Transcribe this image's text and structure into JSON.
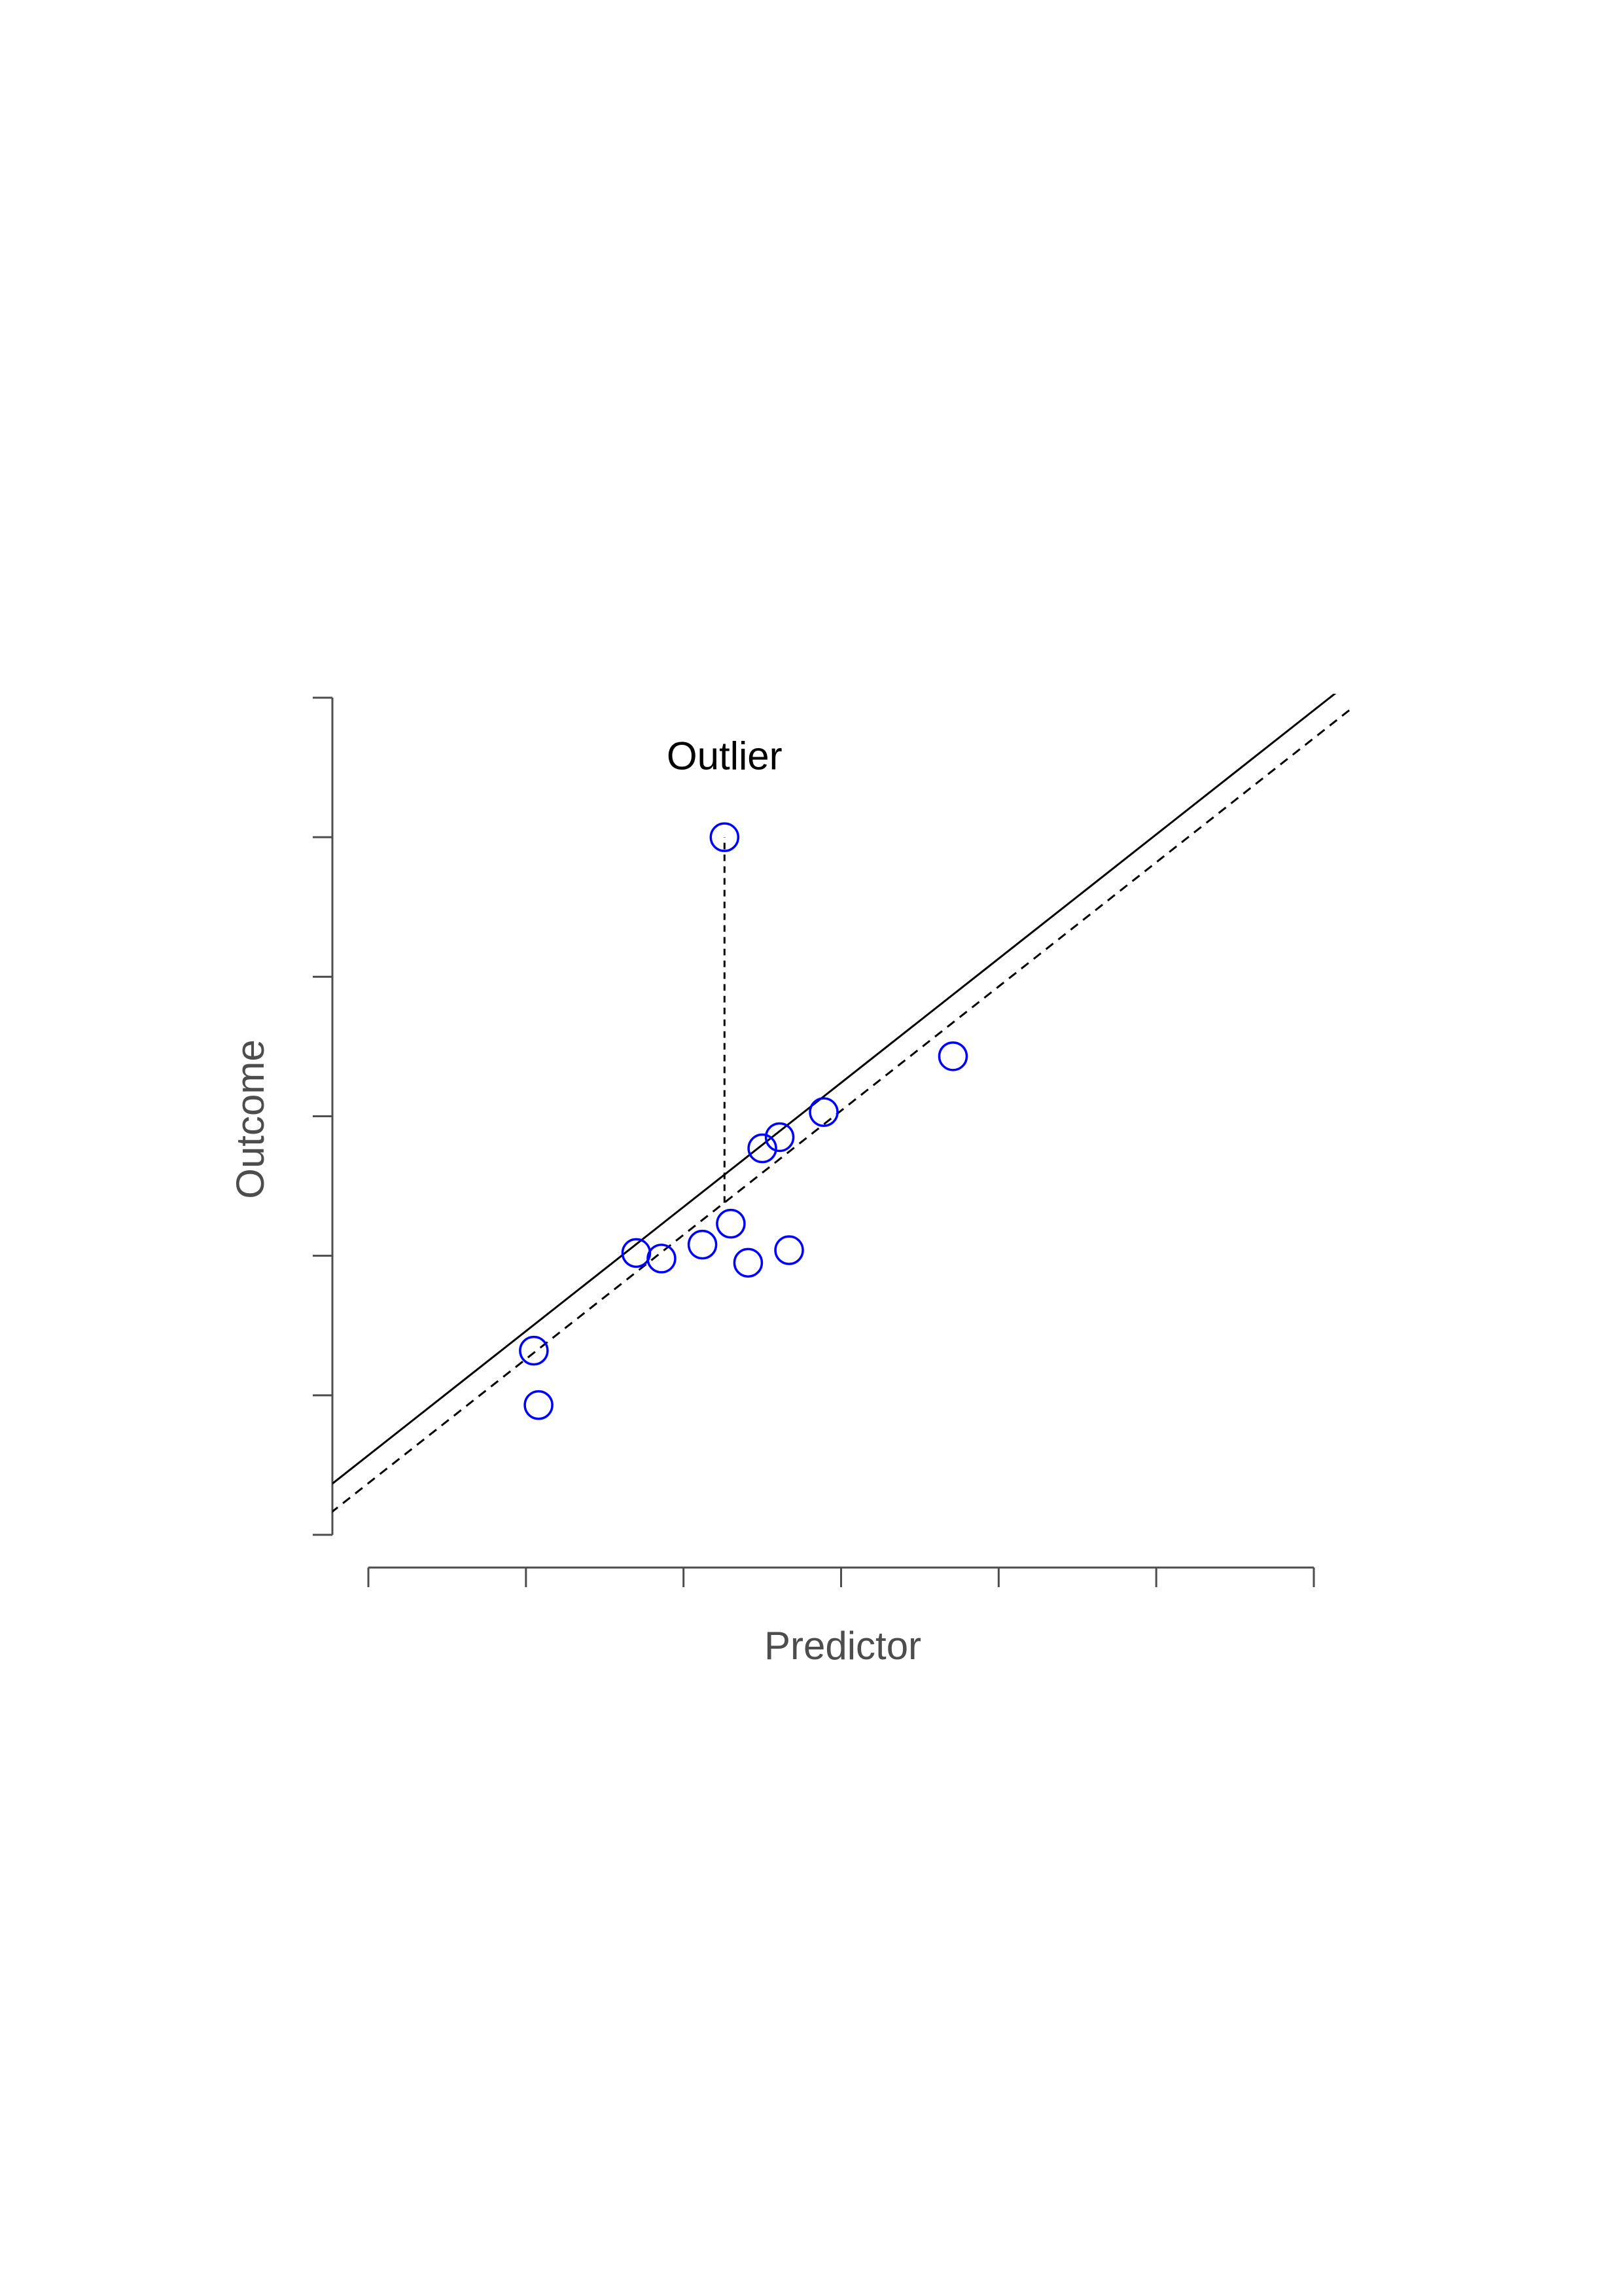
{
  "chart_data": {
    "type": "scatter",
    "title": "",
    "xlabel": "Predictor",
    "ylabel": "Outcome",
    "xlim": [
      0,
      6
    ],
    "ylim": [
      0,
      6
    ],
    "x_ticks": [
      0,
      1,
      2,
      3,
      4,
      5,
      6
    ],
    "y_ticks": [
      0,
      1,
      2,
      3,
      4,
      5,
      6
    ],
    "tick_labels_shown": false,
    "grid": false,
    "legend": "none",
    "colors": {
      "points": "#0000ff",
      "lines": "#000000",
      "axes": "#4d4d4d"
    },
    "points": [
      {
        "x": 1.05,
        "y": 1.32
      },
      {
        "x": 1.08,
        "y": 0.93
      },
      {
        "x": 1.7,
        "y": 2.02
      },
      {
        "x": 1.86,
        "y": 1.98
      },
      {
        "x": 2.12,
        "y": 2.08
      },
      {
        "x": 2.26,
        "y": 5.0
      },
      {
        "x": 2.3,
        "y": 2.23
      },
      {
        "x": 2.41,
        "y": 1.95
      },
      {
        "x": 2.5,
        "y": 2.77
      },
      {
        "x": 2.61,
        "y": 2.85
      },
      {
        "x": 2.67,
        "y": 2.04
      },
      {
        "x": 2.89,
        "y": 3.03
      },
      {
        "x": 3.71,
        "y": 3.43
      }
    ],
    "lines": [
      {
        "style": "solid",
        "intercept": 0.57,
        "slope": 0.89,
        "x_range": [
          -0.24,
          6.24
        ]
      },
      {
        "style": "dashed",
        "intercept": 0.37,
        "slope": 0.89,
        "x_range": [
          -0.24,
          6.24
        ]
      }
    ],
    "annotations": [
      {
        "text": "Outlier",
        "x": 2.26,
        "y": 5.58
      },
      {
        "type": "residual-segment",
        "style": "dashed",
        "x": 2.26,
        "y_from": 2.38,
        "y_to": 5.0
      }
    ]
  }
}
